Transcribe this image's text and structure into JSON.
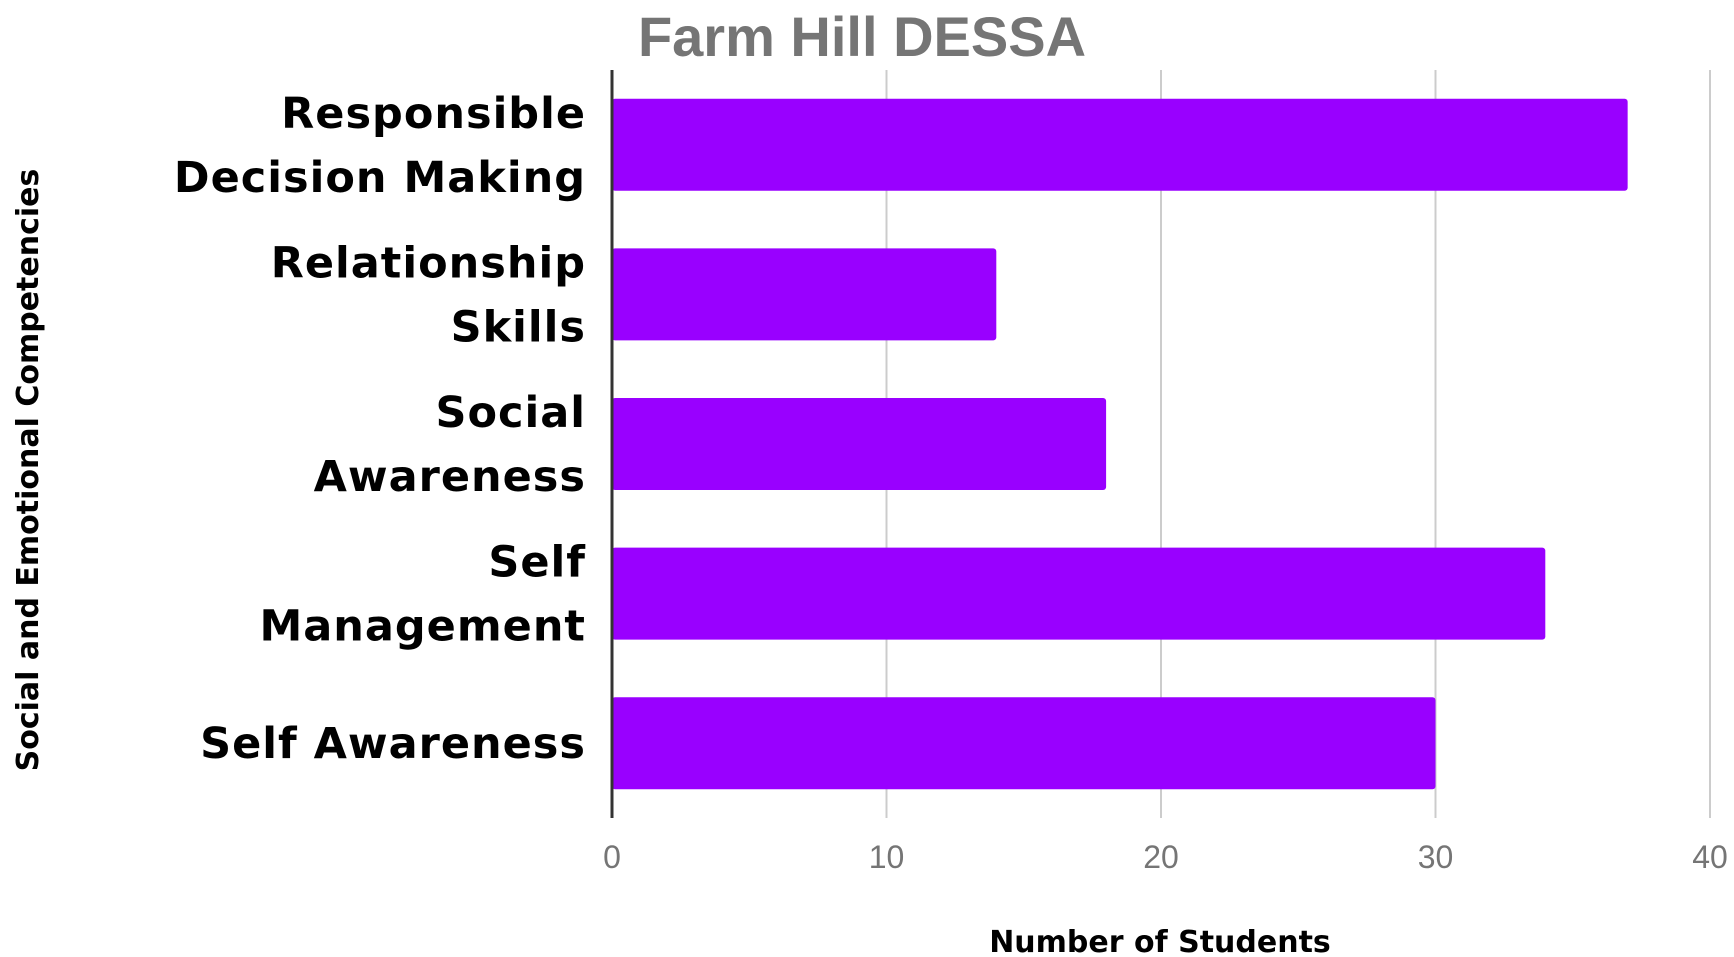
{
  "chart_data": {
    "type": "bar",
    "orientation": "horizontal",
    "title": "Farm Hill DESSA",
    "xlabel": "Number of Students",
    "ylabel": "Social and Emotional Competencies",
    "categories": [
      [
        "Responsible",
        "Decision Making"
      ],
      [
        "Relationship",
        "Skills"
      ],
      [
        "Social",
        "Awareness"
      ],
      [
        "Self",
        "Management"
      ],
      [
        "Self Awareness"
      ]
    ],
    "values": [
      37,
      14,
      18,
      34,
      30
    ],
    "xlim": [
      0,
      40
    ],
    "xticks": [
      "0",
      "10",
      "20",
      "30",
      "40"
    ],
    "grid": true,
    "legend": "none",
    "bar_color": "#9900ff"
  }
}
